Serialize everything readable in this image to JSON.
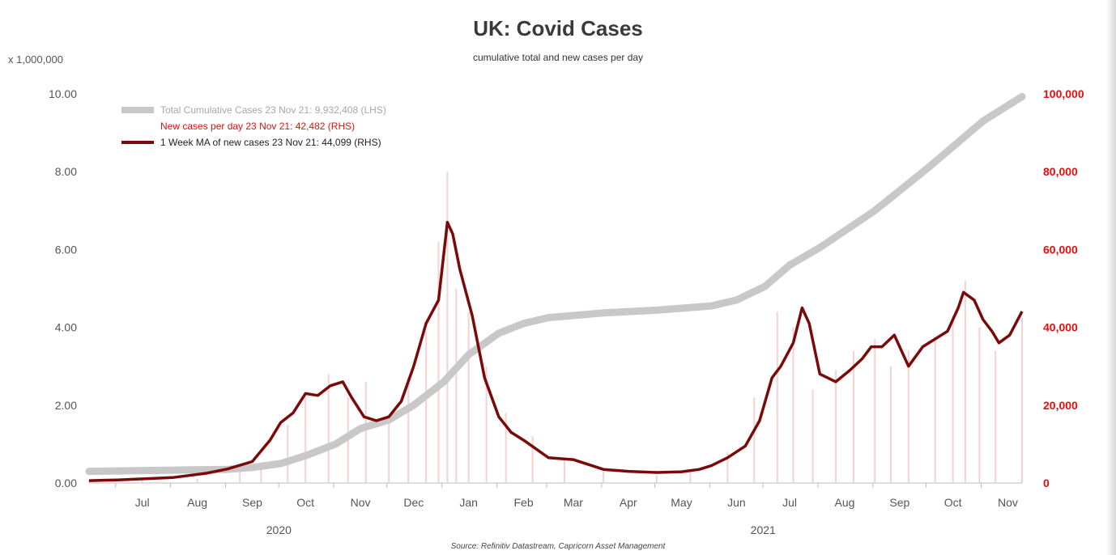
{
  "chart_data": {
    "type": "line",
    "title": "UK: Covid Cases",
    "subtitle": "cumulative total and new cases per day",
    "left_axis_units": "x 1,000,000",
    "source": "Source: Refinitiv Datastream, Capricorn Asset Management",
    "ylim_left": [
      0,
      10
    ],
    "ylim_right": [
      0,
      100000
    ],
    "left_ticks": [
      "0.00",
      "2.00",
      "4.00",
      "6.00",
      "8.00",
      "10.00"
    ],
    "right_ticks": [
      "0",
      "20,000",
      "40,000",
      "60,000",
      "80,000",
      "100,000"
    ],
    "x_months": [
      "Jul",
      "Aug",
      "Sep",
      "Oct",
      "Nov",
      "Dec",
      "Jan",
      "Feb",
      "Mar",
      "Apr",
      "May",
      "Jun",
      "Jul",
      "Aug",
      "Sep",
      "Oct",
      "Nov"
    ],
    "x_years": [
      "2020",
      "2021"
    ],
    "x_range": [
      "2020-06-15",
      "2021-11-23"
    ],
    "legend": [
      "Total Cumulative Cases 23 Nov 21: 9,932,408 (LHS)",
      "New cases per day 23 Nov 21: 42,482 (RHS)",
      "1 Week MA of new cases 23 Nov 21: 44,099 (RHS)"
    ],
    "colors": {
      "cumulative": "#c8c8c8",
      "daily": "#f4c6c6",
      "ma": "#7a0a0a",
      "rhs_axis": "#e01010"
    },
    "series": [
      {
        "name": "Total Cumulative Cases 23 Nov 21: 9,932,408 (LHS)",
        "axis": "left",
        "x": [
          "2020-06-15",
          "2020-07-01",
          "2020-08-01",
          "2020-09-01",
          "2020-09-15",
          "2020-10-01",
          "2020-10-15",
          "2020-11-01",
          "2020-11-15",
          "2020-12-01",
          "2020-12-15",
          "2021-01-01",
          "2021-01-15",
          "2021-02-01",
          "2021-02-15",
          "2021-03-01",
          "2021-04-01",
          "2021-05-01",
          "2021-06-01",
          "2021-06-15",
          "2021-07-01",
          "2021-07-15",
          "2021-08-01",
          "2021-09-01",
          "2021-10-01",
          "2021-11-01",
          "2021-11-23"
        ],
        "values": [
          0.3,
          0.31,
          0.33,
          0.35,
          0.4,
          0.5,
          0.7,
          1.0,
          1.4,
          1.62,
          2.0,
          2.6,
          3.3,
          3.85,
          4.1,
          4.25,
          4.37,
          4.44,
          4.55,
          4.7,
          5.05,
          5.6,
          6.05,
          7.0,
          8.1,
          9.3,
          9.93
        ]
      },
      {
        "name": "New cases per day 23 Nov 21: 42,482 (RHS)",
        "axis": "right",
        "x": [
          "2020-06-15",
          "2020-07-15",
          "2020-08-15",
          "2020-09-08",
          "2020-09-20",
          "2020-10-05",
          "2020-10-15",
          "2020-10-28",
          "2020-11-08",
          "2020-11-18",
          "2020-12-01",
          "2020-12-12",
          "2020-12-22",
          "2020-12-29",
          "2021-01-03",
          "2021-01-08",
          "2021-01-15",
          "2021-01-25",
          "2021-02-05",
          "2021-02-20",
          "2021-03-10",
          "2021-04-01",
          "2021-05-01",
          "2021-05-20",
          "2021-06-10",
          "2021-06-25",
          "2021-07-08",
          "2021-07-17",
          "2021-07-28",
          "2021-08-10",
          "2021-08-20",
          "2021-09-01",
          "2021-09-10",
          "2021-09-20",
          "2021-10-05",
          "2021-10-15",
          "2021-10-22",
          "2021-10-30",
          "2021-11-08",
          "2021-11-23"
        ],
        "values": [
          800,
          700,
          1000,
          3500,
          4500,
          15000,
          22000,
          28000,
          22000,
          26000,
          16000,
          27000,
          39000,
          62000,
          80000,
          50000,
          44000,
          30000,
          18000,
          12000,
          6000,
          3000,
          2000,
          2800,
          8000,
          22000,
          44000,
          40000,
          24000,
          29000,
          34000,
          37000,
          30000,
          34000,
          37000,
          43000,
          52000,
          40000,
          34000,
          42482
        ]
      },
      {
        "name": "1 Week MA of new cases 23 Nov 21: 44,099 (RHS)",
        "axis": "right",
        "x": [
          "2020-06-15",
          "2020-07-01",
          "2020-08-01",
          "2020-08-20",
          "2020-09-01",
          "2020-09-15",
          "2020-09-25",
          "2020-10-01",
          "2020-10-08",
          "2020-10-15",
          "2020-10-22",
          "2020-10-29",
          "2020-11-05",
          "2020-11-10",
          "2020-11-17",
          "2020-11-24",
          "2020-12-01",
          "2020-12-08",
          "2020-12-15",
          "2020-12-22",
          "2020-12-29",
          "2021-01-03",
          "2021-01-06",
          "2021-01-10",
          "2021-01-17",
          "2021-01-24",
          "2021-02-01",
          "2021-02-08",
          "2021-02-15",
          "2021-03-01",
          "2021-03-15",
          "2021-04-01",
          "2021-04-15",
          "2021-05-01",
          "2021-05-15",
          "2021-05-25",
          "2021-06-01",
          "2021-06-10",
          "2021-06-20",
          "2021-06-28",
          "2021-07-05",
          "2021-07-10",
          "2021-07-17",
          "2021-07-22",
          "2021-07-26",
          "2021-08-01",
          "2021-08-10",
          "2021-08-18",
          "2021-08-25",
          "2021-08-30",
          "2021-09-05",
          "2021-09-12",
          "2021-09-20",
          "2021-09-28",
          "2021-10-05",
          "2021-10-12",
          "2021-10-18",
          "2021-10-21",
          "2021-10-27",
          "2021-11-01",
          "2021-11-06",
          "2021-11-10",
          "2021-11-16",
          "2021-11-23"
        ],
        "values": [
          600,
          800,
          1400,
          2500,
          3600,
          5500,
          11000,
          15500,
          18000,
          23000,
          22500,
          25000,
          26000,
          22000,
          17000,
          16000,
          17000,
          21000,
          30000,
          41000,
          47000,
          67000,
          64000,
          55000,
          43000,
          27000,
          17000,
          13000,
          11000,
          6500,
          6000,
          3500,
          3000,
          2700,
          2900,
          3500,
          4500,
          6500,
          9500,
          16000,
          27000,
          30000,
          36000,
          45000,
          41000,
          28000,
          26000,
          29000,
          32000,
          35000,
          35000,
          38000,
          30000,
          35000,
          37000,
          39000,
          45000,
          49000,
          47000,
          42000,
          39000,
          36000,
          38000,
          44099
        ]
      }
    ]
  }
}
